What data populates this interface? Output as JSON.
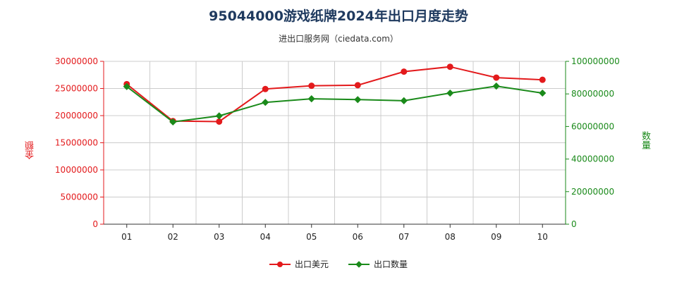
{
  "header": {
    "title": "95044000游戏纸牌2024年出口月度走势",
    "subtitle": "进出口服务网（ciedata.com）"
  },
  "colors": {
    "amount": "#e31a1c",
    "quantity": "#1a8a1a",
    "grid": "#cccccc",
    "axis": "#333333"
  },
  "chart_data": {
    "type": "line",
    "title": "95044000游戏纸牌2024年出口月度走势",
    "subtitle": "进出口服务网（ciedata.com）",
    "categories": [
      "01",
      "02",
      "03",
      "04",
      "05",
      "06",
      "07",
      "08",
      "09",
      "10"
    ],
    "y_left": {
      "label": "金额",
      "ylim": [
        0,
        30000000
      ],
      "ticks": [
        0,
        5000000,
        10000000,
        15000000,
        20000000,
        25000000,
        30000000
      ]
    },
    "y_right": {
      "label": "数量",
      "ylim": [
        0,
        100000000
      ],
      "ticks": [
        0,
        20000000,
        40000000,
        60000000,
        80000000,
        100000000
      ]
    },
    "grid": true,
    "legend_position": "bottom",
    "series": [
      {
        "name": "出口美元",
        "axis": "left",
        "values": [
          25800000,
          19000000,
          18900000,
          24900000,
          25500000,
          25600000,
          28100000,
          29000000,
          27000000,
          26600000
        ]
      },
      {
        "name": "出口数量",
        "axis": "right",
        "values": [
          84500000,
          62800000,
          66500000,
          74800000,
          77000000,
          76500000,
          75800000,
          80500000,
          84800000,
          80500000
        ]
      }
    ]
  }
}
